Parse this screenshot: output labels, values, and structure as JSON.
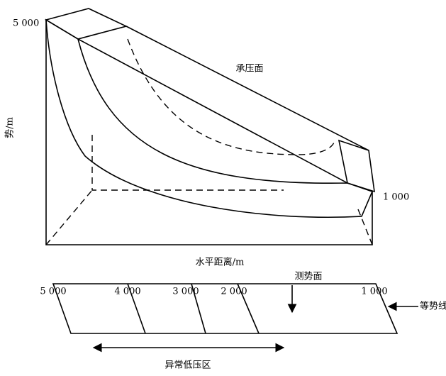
{
  "diagram": {
    "top_view": {
      "y_axis_label": "势/m",
      "top_value": "5 000",
      "right_value": "1 000",
      "surface_label": "承压面",
      "x_axis_label": "水平距离/m"
    },
    "bottom_view": {
      "contours": [
        "5 000",
        "4 000",
        "3 000",
        "2 000",
        "1 000"
      ],
      "surface_label": "测势面",
      "line_label": "等势线",
      "zone_label": "异常低压区"
    }
  }
}
